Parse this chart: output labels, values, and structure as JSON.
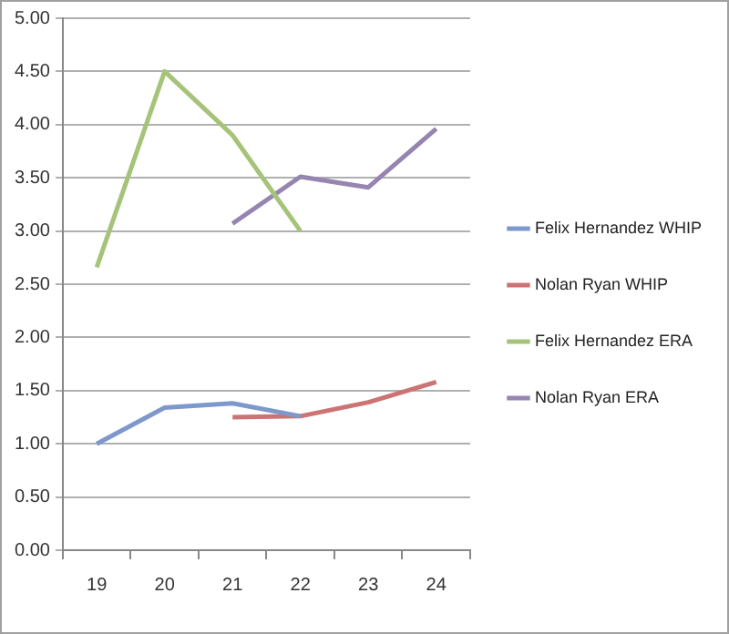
{
  "chart_data": {
    "type": "line",
    "categories": [
      "19",
      "20",
      "21",
      "22",
      "23",
      "24"
    ],
    "series": [
      {
        "name": "Felix Hernandez WHIP",
        "color": "#7f98cc",
        "values": [
          1.0,
          1.34,
          1.38,
          1.26,
          null,
          null
        ]
      },
      {
        "name": "Nolan Ryan WHIP",
        "color": "#cc7374",
        "values": [
          null,
          null,
          1.25,
          1.26,
          1.39,
          1.58
        ]
      },
      {
        "name": "Felix Hernandez ERA",
        "color": "#a6c37a",
        "values": [
          2.66,
          4.5,
          3.9,
          3.0,
          null,
          null
        ]
      },
      {
        "name": "Nolan Ryan ERA",
        "color": "#9585b0",
        "values": [
          null,
          null,
          3.07,
          3.51,
          3.41,
          3.96
        ]
      }
    ],
    "ylim": [
      0,
      5
    ],
    "yticks": [
      {
        "value": 0,
        "label": "0.00"
      },
      {
        "value": 0.5,
        "label": "0.50"
      },
      {
        "value": 1,
        "label": "1.00"
      },
      {
        "value": 1.5,
        "label": "1.50"
      },
      {
        "value": 2,
        "label": "2.00"
      },
      {
        "value": 2.5,
        "label": "2.50"
      },
      {
        "value": 3,
        "label": "3.00"
      },
      {
        "value": 3.5,
        "label": "3.50"
      },
      {
        "value": 4,
        "label": "4.00"
      },
      {
        "value": 4.5,
        "label": "4.50"
      },
      {
        "value": 5,
        "label": "5.00"
      }
    ],
    "grid": "y",
    "legend": "right",
    "marker": "none",
    "line_style": "solid"
  }
}
